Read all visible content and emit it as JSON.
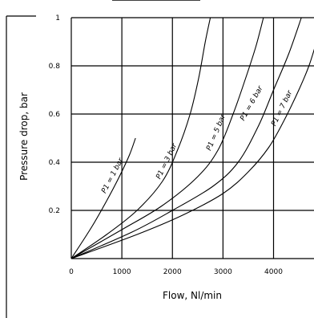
{
  "chart_data": {
    "type": "line",
    "title": "",
    "xlabel": "Flow, Nl/min",
    "ylabel": "Pressure drop, bar",
    "xlim": [
      0,
      4800
    ],
    "ylim": [
      0,
      1
    ],
    "grid": true,
    "x_ticks": [
      {
        "value": 0,
        "label": "0"
      },
      {
        "value": 1000,
        "label": "1000"
      },
      {
        "value": 2000,
        "label": "2000"
      },
      {
        "value": 3000,
        "label": "3000"
      },
      {
        "value": 4000,
        "label": "4000"
      }
    ],
    "y_ticks": [
      {
        "value": 0.2,
        "label": "0.2"
      },
      {
        "value": 0.4,
        "label": "0.4"
      },
      {
        "value": 0.6,
        "label": "0.6"
      },
      {
        "value": 0.8,
        "label": "0.8"
      },
      {
        "value": 1.0,
        "label": "1"
      }
    ],
    "series": [
      {
        "name": "P1 = 1 bar",
        "label": "P1 = 1 bar",
        "points": [
          [
            0,
            0
          ],
          [
            400,
            0.13
          ],
          [
            700,
            0.24
          ],
          [
            950,
            0.34
          ],
          [
            1150,
            0.43
          ],
          [
            1270,
            0.5
          ]
        ],
        "label_at": [
          850,
          0.34
        ]
      },
      {
        "name": "P1 = 3 bar",
        "label": "P1 = 3 bar",
        "points": [
          [
            0,
            0
          ],
          [
            700,
            0.1
          ],
          [
            1300,
            0.2
          ],
          [
            1800,
            0.32
          ],
          [
            2100,
            0.45
          ],
          [
            2350,
            0.6
          ],
          [
            2520,
            0.75
          ],
          [
            2650,
            0.9
          ],
          [
            2750,
            1.0
          ]
        ],
        "label_at": [
          1920,
          0.4
        ]
      },
      {
        "name": "P1 = 5 bar",
        "label": "P1 = 5 bar",
        "points": [
          [
            0,
            0
          ],
          [
            1000,
            0.12
          ],
          [
            1800,
            0.22
          ],
          [
            2500,
            0.34
          ],
          [
            2900,
            0.45
          ],
          [
            3200,
            0.6
          ],
          [
            3450,
            0.75
          ],
          [
            3650,
            0.88
          ],
          [
            3800,
            1.0
          ]
        ],
        "label_at": [
          2900,
          0.52
        ]
      },
      {
        "name": "P1 = 6 bar",
        "label": "P1 = 6 bar",
        "points": [
          [
            0,
            0
          ],
          [
            1200,
            0.11
          ],
          [
            2000,
            0.2
          ],
          [
            2800,
            0.3
          ],
          [
            3300,
            0.4
          ],
          [
            3700,
            0.55
          ],
          [
            4000,
            0.7
          ],
          [
            4300,
            0.85
          ],
          [
            4550,
            1.0
          ]
        ],
        "label_at": [
          3600,
          0.64
        ]
      },
      {
        "name": "P1 = 7 bar",
        "label": "P1 = 7 bar",
        "points": [
          [
            0,
            0
          ],
          [
            1300,
            0.1
          ],
          [
            2200,
            0.18
          ],
          [
            3000,
            0.27
          ],
          [
            3500,
            0.36
          ],
          [
            3900,
            0.46
          ],
          [
            4200,
            0.57
          ],
          [
            4500,
            0.7
          ],
          [
            4700,
            0.8
          ],
          [
            4850,
            0.9
          ]
        ],
        "label_at": [
          4200,
          0.62
        ]
      }
    ]
  }
}
